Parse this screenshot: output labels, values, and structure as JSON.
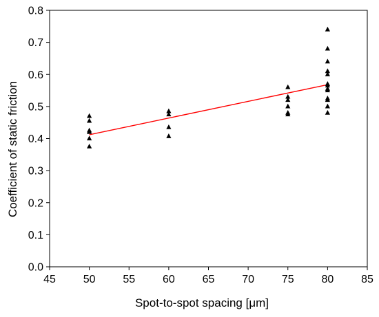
{
  "chart_data": {
    "type": "scatter",
    "xlabel": "Spot-to-spot spacing [μm]",
    "ylabel": "Coefficient of static friction",
    "xlim": [
      45,
      85
    ],
    "ylim": [
      0.0,
      0.8
    ],
    "x_ticks": [
      "45",
      "50",
      "55",
      "60",
      "65",
      "70",
      "75",
      "80",
      "85"
    ],
    "y_ticks": [
      "0.0",
      "0.1",
      "0.2",
      "0.3",
      "0.4",
      "0.5",
      "0.6",
      "0.7",
      "0.8"
    ],
    "grid": false,
    "legend": "none",
    "series": [
      {
        "marker": "triangle",
        "color": "#000000",
        "points": [
          [
            50,
            0.47
          ],
          [
            50,
            0.455
          ],
          [
            50,
            0.425
          ],
          [
            50,
            0.42
          ],
          [
            50,
            0.4
          ],
          [
            50,
            0.375
          ],
          [
            60,
            0.485
          ],
          [
            60,
            0.475
          ],
          [
            60,
            0.435
          ],
          [
            60,
            0.407
          ],
          [
            75,
            0.56
          ],
          [
            75,
            0.53
          ],
          [
            75,
            0.52
          ],
          [
            75,
            0.5
          ],
          [
            75,
            0.48
          ],
          [
            75,
            0.475
          ],
          [
            80,
            0.74
          ],
          [
            80,
            0.68
          ],
          [
            80,
            0.64
          ],
          [
            80,
            0.61
          ],
          [
            80,
            0.6
          ],
          [
            80,
            0.57
          ],
          [
            80,
            0.565
          ],
          [
            80,
            0.555
          ],
          [
            80,
            0.55
          ],
          [
            80,
            0.525
          ],
          [
            80,
            0.52
          ],
          [
            80,
            0.5
          ],
          [
            80,
            0.48
          ]
        ]
      }
    ],
    "fit_line": {
      "color": "#ff0000",
      "points": [
        [
          50,
          0.412
        ],
        [
          80,
          0.568
        ]
      ]
    }
  }
}
